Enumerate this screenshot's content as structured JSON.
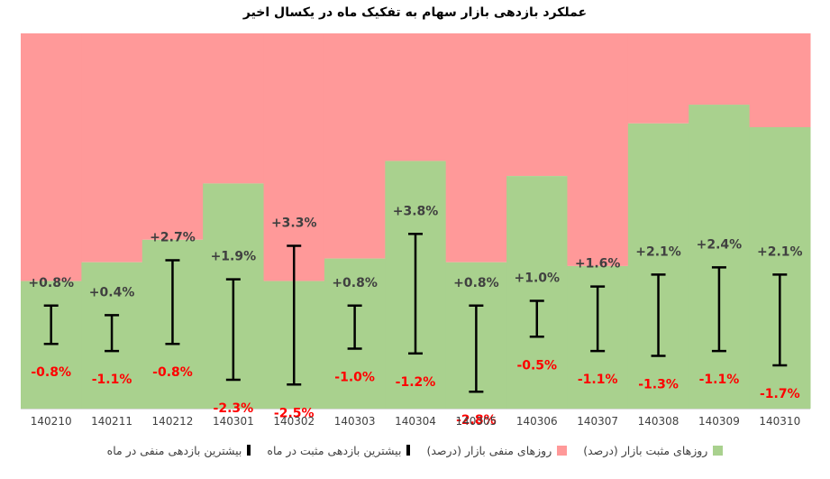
{
  "chart_data": {
    "type": "bar",
    "title": "عملکرد بازدهی بازار سهام به تفکیک ماه در یکسال اخیر",
    "categories": [
      "140210",
      "140211",
      "140212",
      "140301",
      "140302",
      "140303",
      "140304",
      "140305",
      "140306",
      "140307",
      "140308",
      "140309",
      "140310"
    ],
    "series": [
      {
        "name": "روزهای مثبت بازار (درصد)",
        "color": "#a9d18e",
        "values": [
          34,
          39,
          45,
          60,
          34,
          40,
          66,
          39,
          62,
          38,
          76,
          81,
          75
        ]
      },
      {
        "name": "روزهای منفی بازار (درصد)",
        "color": "#ff9999",
        "values": [
          66,
          61,
          55,
          40,
          66,
          60,
          34,
          61,
          38,
          62,
          24,
          19,
          25
        ]
      }
    ],
    "max_positive": {
      "name": "بیشترین بازدهی مثبت در ماه",
      "values": [
        0.8,
        0.4,
        2.7,
        1.9,
        3.3,
        0.8,
        3.8,
        0.8,
        1.0,
        1.6,
        2.1,
        2.4,
        2.1
      ],
      "labels": [
        "+0.8%",
        "+0.4%",
        "+2.7%",
        "+1.9%",
        "+3.3%",
        "+0.8%",
        "+3.8%",
        "+0.8%",
        "+1.0%",
        "+1.6%",
        "+2.1%",
        "+2.4%",
        "+2.1%"
      ],
      "label_color": "#404040"
    },
    "max_negative": {
      "name": "بیشترین بازدهی منفی در ماه",
      "values": [
        -0.8,
        -1.1,
        -0.8,
        -2.3,
        -2.5,
        -1.0,
        -1.2,
        -2.8,
        -0.5,
        -1.1,
        -1.3,
        -1.1,
        -1.7
      ],
      "labels": [
        "-0.8%",
        "-1.1%",
        "-0.8%",
        "-2.3%",
        "-2.5%",
        "-1.0%",
        "-1.2%",
        "-2.8%",
        "-0.5%",
        "-1.1%",
        "-1.3%",
        "-1.1%",
        "-1.7%"
      ],
      "label_color": "#ff0000"
    },
    "ylim": [
      0,
      100
    ],
    "xlabel": "",
    "ylabel": "",
    "grid": false,
    "legend_position": "bottom"
  }
}
